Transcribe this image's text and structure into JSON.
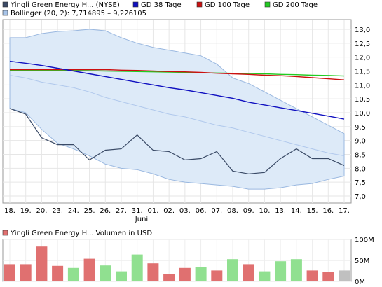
{
  "chart_data": [
    {
      "type": "line",
      "legend": [
        {
          "label": "Yingli Green Energy H... (NYSE)",
          "color": "#3a4a66"
        },
        {
          "label": "GD 38 Tage",
          "color": "#1010c0"
        },
        {
          "label": "GD 100 Tage",
          "color": "#cc1010"
        },
        {
          "label": "GD 200 Tage",
          "color": "#22cc22"
        },
        {
          "label": "Bollinger (20, 2): 7,714895 – 9,226105",
          "color": "#a8c4e8"
        }
      ],
      "x_labels": [
        "18.",
        "19.",
        "20.",
        "23.",
        "24.",
        "25.",
        "26.",
        "27.",
        "31.",
        "01.",
        "02.",
        "03.",
        "06.",
        "07.",
        "08.",
        "09.",
        "10.",
        "13.",
        "14.",
        "15.",
        "16.",
        "17."
      ],
      "month_label": "Juni",
      "y_ticks": [
        "13,0",
        "12,5",
        "12,0",
        "11,5",
        "11,0",
        "10,5",
        "10,0",
        "9,5",
        "9,0",
        "8,5",
        "8,0",
        "7,5",
        "7,0"
      ],
      "ylim": [
        7.0,
        13.0
      ],
      "series": [
        {
          "name": "Yingli Green Energy H... (NYSE)",
          "color": "#3a4a66",
          "values": [
            10.15,
            9.95,
            9.1,
            8.85,
            8.85,
            8.3,
            8.65,
            8.7,
            9.2,
            8.65,
            8.6,
            8.3,
            8.35,
            8.6,
            7.9,
            7.8,
            7.85,
            8.35,
            8.7,
            8.35,
            8.35,
            8.1
          ]
        },
        {
          "name": "GD 38 Tage",
          "color": "#1010c0",
          "values": [
            11.85,
            11.78,
            11.7,
            11.6,
            11.5,
            11.4,
            11.3,
            11.2,
            11.1,
            11.0,
            10.9,
            10.82,
            10.72,
            10.62,
            10.52,
            10.38,
            10.28,
            10.18,
            10.08,
            9.98,
            9.88,
            9.77
          ]
        },
        {
          "name": "GD 100 Tage",
          "color": "#cc1010",
          "values": [
            11.55,
            11.55,
            11.55,
            11.55,
            11.55,
            11.55,
            11.55,
            11.53,
            11.52,
            11.5,
            11.48,
            11.47,
            11.45,
            11.42,
            11.4,
            11.38,
            11.35,
            11.33,
            11.3,
            11.26,
            11.22,
            11.18
          ]
        },
        {
          "name": "GD 200 Tage",
          "color": "#22cc22",
          "values": [
            11.52,
            11.52,
            11.52,
            11.52,
            11.52,
            11.51,
            11.5,
            11.49,
            11.48,
            11.47,
            11.46,
            11.45,
            11.44,
            11.43,
            11.42,
            11.41,
            11.4,
            11.38,
            11.37,
            11.35,
            11.34,
            11.32
          ]
        }
      ],
      "bollinger": {
        "upper": [
          12.7,
          12.7,
          12.85,
          12.92,
          12.95,
          13.0,
          12.95,
          12.7,
          12.5,
          12.35,
          12.25,
          12.15,
          12.05,
          11.75,
          11.25,
          11.05,
          10.75,
          10.45,
          10.15,
          9.85,
          9.55,
          9.25
        ],
        "middle": [
          11.35,
          11.25,
          11.1,
          11.0,
          10.9,
          10.75,
          10.55,
          10.4,
          10.25,
          10.1,
          9.95,
          9.85,
          9.7,
          9.55,
          9.45,
          9.3,
          9.15,
          9.0,
          8.85,
          8.7,
          8.55,
          8.45
        ],
        "lower": [
          10.15,
          10.0,
          9.4,
          8.9,
          8.7,
          8.45,
          8.15,
          8.0,
          7.95,
          7.8,
          7.6,
          7.5,
          7.45,
          7.4,
          7.35,
          7.25,
          7.25,
          7.3,
          7.4,
          7.45,
          7.6,
          7.72
        ]
      }
    },
    {
      "type": "bar",
      "legend": [
        {
          "label": "Yingli Green Energy H... Volumen in USD",
          "color": "#e07070"
        }
      ],
      "y_ticks": [
        "100M",
        "50M",
        "0M"
      ],
      "ylim": [
        0,
        100
      ],
      "values": [
        41,
        41,
        83,
        37,
        32,
        54,
        38,
        24,
        64,
        43,
        18,
        32,
        34,
        26,
        53,
        41,
        24,
        48,
        53,
        26,
        22,
        26
      ],
      "bar_colors": [
        "#e07070",
        "#e07070",
        "#e07070",
        "#e07070",
        "#90e090",
        "#e07070",
        "#90e090",
        "#90e090",
        "#90e090",
        "#e07070",
        "#e07070",
        "#e07070",
        "#90e090",
        "#e07070",
        "#90e090",
        "#e07070",
        "#90e090",
        "#90e090",
        "#90e090",
        "#e07070",
        "#e07070",
        "#c0c0c0"
      ]
    }
  ]
}
